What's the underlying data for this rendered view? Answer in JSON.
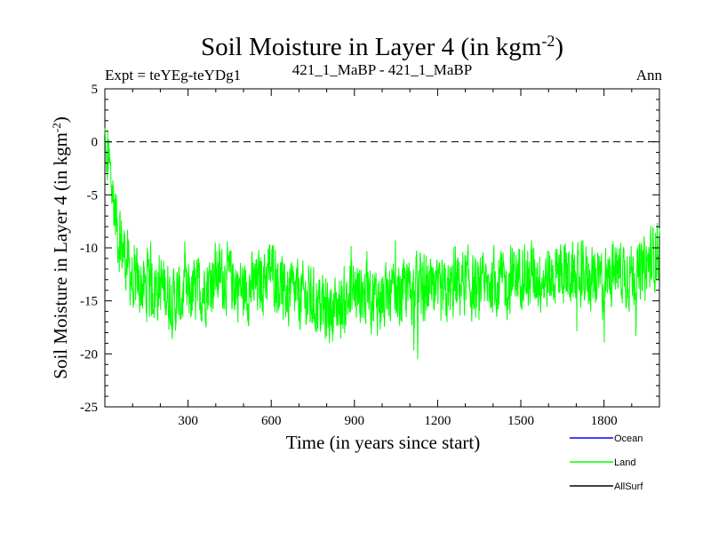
{
  "chart_data": {
    "type": "line",
    "title": "Soil Moisture in Layer 4 (in kgm",
    "title_sup": "-2",
    "title_close": ")",
    "subtitle_left": "Expt = teYEg-teYDg1",
    "subtitle_center": "421_1_MaBP - 421_1_MaBP",
    "subtitle_right": "Ann",
    "xlabel": "Time (in years since start)",
    "ylabel": "Soil Moisture in Layer 4 (in kgm",
    "ylabel_sup": "-2",
    "ylabel_close": ")",
    "xlim": [
      0,
      2000
    ],
    "ylim": [
      -25,
      5
    ],
    "xticks": [
      300,
      600,
      900,
      1200,
      1500,
      1800
    ],
    "xtick_labels": [
      "300",
      "600",
      "900",
      "1200",
      "1500",
      "1800"
    ],
    "yticks": [
      5,
      0,
      -5,
      -10,
      -15,
      -20,
      -25
    ],
    "ytick_labels": [
      "5",
      "0",
      "-5",
      "-10",
      "-15",
      "-20",
      "-25"
    ],
    "reference_line": 0,
    "legend": [
      {
        "name": "Ocean",
        "color": "#0000ff"
      },
      {
        "name": "Land",
        "color": "#00ff00"
      },
      {
        "name": "AllSurf",
        "color": "#000000"
      }
    ],
    "series": [
      {
        "name": "Land",
        "color": "#00ff00",
        "x_start": 0,
        "x_end": 2000,
        "approx_values_every_50_years": [
          0.5,
          -9,
          -13,
          -14,
          -13.5,
          -15,
          -14.5,
          -14,
          -12.5,
          -13,
          -14,
          -13.5,
          -12,
          -14,
          -14.5,
          -15,
          -16,
          -15.5,
          -14,
          -14.5,
          -15,
          -14.5,
          -14,
          -13.5,
          -15,
          -14,
          -13,
          -14.5,
          -13,
          -13.5,
          -12,
          -12.5,
          -13,
          -12,
          -13,
          -12.5,
          -13.5,
          -12,
          -12.5,
          -12,
          -10
        ]
      }
    ]
  }
}
